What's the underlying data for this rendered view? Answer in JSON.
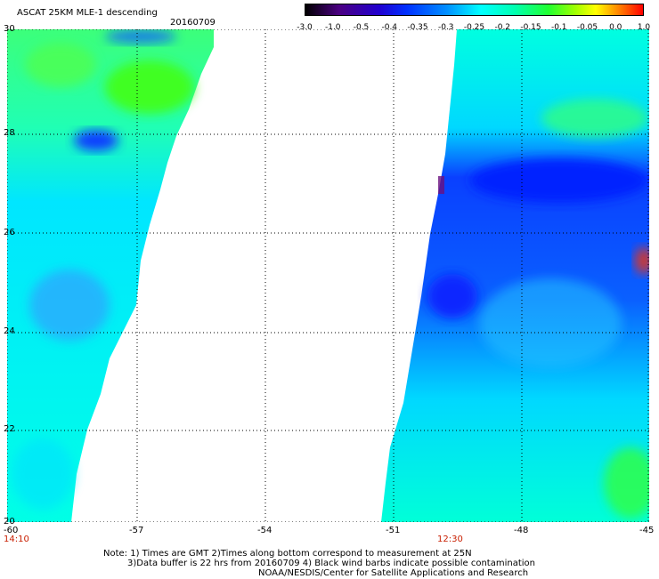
{
  "title": "ASCAT 25KM MLE-1 descending",
  "date": "20160709",
  "colorbar": {
    "labels": [
      "-3.0",
      "-1.0",
      "-0.5",
      "-0.4",
      "-0.35",
      "-0.3",
      "-0.25",
      "-0.2",
      "-0.15",
      "-0.1",
      "-0.05",
      "0.0",
      "1.0"
    ],
    "colors": [
      "#000000",
      "#4b0082",
      "#2500c8",
      "#0030ff",
      "#0070ff",
      "#00b4ff",
      "#00ffff",
      "#00ffb0",
      "#10ff40",
      "#a0ff00",
      "#ffff00",
      "#ff8000",
      "#ff0000"
    ]
  },
  "lat_labels": [
    "30",
    "28",
    "26",
    "24",
    "22",
    "20"
  ],
  "lon_labels": [
    "-60",
    "-57",
    "-54",
    "-51",
    "-48",
    "-45"
  ],
  "times": [
    "14:10",
    "12:30"
  ],
  "notes": [
    "Note: 1) Times are GMT 2)Times along bottom correspond to measurement at 25N",
    "3)Data buffer is 22 hrs from 20160709 4) Black wind barbs indicate possible contamination",
    "NOAA/NESDIS/Center for Satellite Applications and Research"
  ]
}
